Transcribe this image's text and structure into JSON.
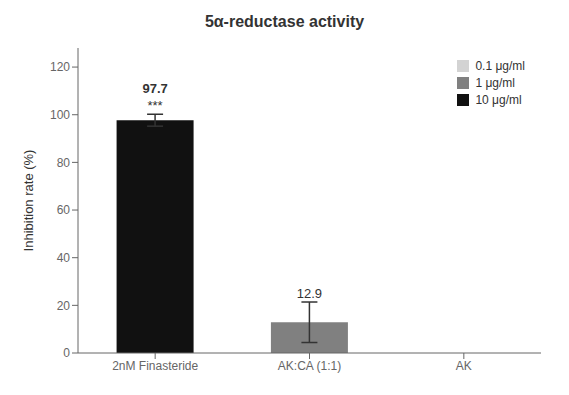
{
  "chart_data": {
    "type": "bar",
    "title": "5α-reductase activity",
    "y_label": "Inhibition rate (%)",
    "categories": [
      "2nM Finasteride",
      "AK:CA (1:1)",
      "AK"
    ],
    "series": [
      {
        "name": "0.1 μg/ml",
        "color": "#d3d3d3",
        "values": [
          null,
          null,
          null
        ],
        "errors": [
          null,
          null,
          null
        ]
      },
      {
        "name": "1 μg/ml",
        "color": "#808080",
        "values": [
          null,
          12.9,
          null
        ],
        "errors": [
          null,
          8.5,
          null
        ]
      },
      {
        "name": "10 μg/ml",
        "color": "#111111",
        "values": [
          97.7,
          null,
          null
        ],
        "errors": [
          2.5,
          null,
          null
        ]
      }
    ],
    "ylim": [
      0,
      128
    ],
    "yticks": [
      0,
      20,
      40,
      60,
      80,
      100,
      120
    ],
    "grid": false,
    "data_labels": true,
    "legend": "upper right",
    "annotations": [
      {
        "text": "***",
        "category": "2nM Finasteride"
      }
    ]
  }
}
